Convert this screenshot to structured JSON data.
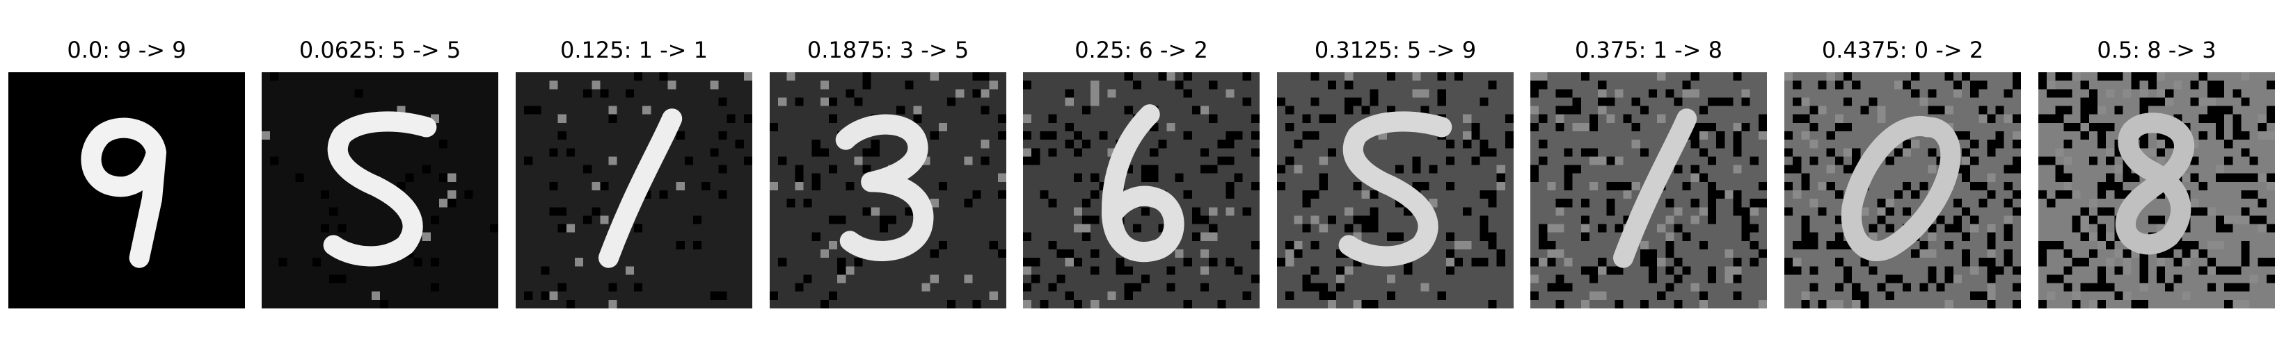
{
  "panels": [
    {
      "caption": "0.0: 9 -> 9",
      "epsilon": "0.0",
      "true_label": "9",
      "predicted_label": "9",
      "digit": "9",
      "noise_level": 0,
      "bg_gray": "#000000",
      "stroke_gray": "#f2f2f2"
    },
    {
      "caption": "0.0625: 5 -> 5",
      "epsilon": "0.0625",
      "true_label": "5",
      "predicted_label": "5",
      "digit": "5",
      "noise_level": 0.06,
      "bg_gray": "#101010",
      "stroke_gray": "#f0f0f0"
    },
    {
      "caption": "0.125: 1 -> 1",
      "epsilon": "0.125",
      "true_label": "1",
      "predicted_label": "1",
      "digit": "1",
      "noise_level": 0.12,
      "bg_gray": "#202020",
      "stroke_gray": "#eeeeee"
    },
    {
      "caption": "0.1875: 3 -> 5",
      "epsilon": "0.1875",
      "true_label": "3",
      "predicted_label": "5",
      "digit": "3",
      "noise_level": 0.19,
      "bg_gray": "#303030",
      "stroke_gray": "#e8e8e8"
    },
    {
      "caption": "0.25: 6 -> 2",
      "epsilon": "0.25",
      "true_label": "6",
      "predicted_label": "2",
      "digit": "6",
      "noise_level": 0.25,
      "bg_gray": "#404040",
      "stroke_gray": "#e0e0e0"
    },
    {
      "caption": "0.3125: 5 -> 9",
      "epsilon": "0.3125",
      "true_label": "5",
      "predicted_label": "9",
      "digit": "5",
      "noise_level": 0.31,
      "bg_gray": "#505050",
      "stroke_gray": "#d8d8d8"
    },
    {
      "caption": "0.375: 1 -> 8",
      "epsilon": "0.375",
      "true_label": "1",
      "predicted_label": "8",
      "digit": "1",
      "noise_level": 0.38,
      "bg_gray": "#606060",
      "stroke_gray": "#d0d0d0"
    },
    {
      "caption": "0.4375: 0 -> 2",
      "epsilon": "0.4375",
      "true_label": "0",
      "predicted_label": "2",
      "digit": "0",
      "noise_level": 0.44,
      "bg_gray": "#707070",
      "stroke_gray": "#c8c8c8"
    },
    {
      "caption": "0.5: 8 -> 3",
      "epsilon": "0.5",
      "true_label": "8",
      "predicted_label": "3",
      "digit": "8",
      "noise_level": 0.5,
      "bg_gray": "#808080",
      "stroke_gray": "#c0c0c0"
    }
  ]
}
